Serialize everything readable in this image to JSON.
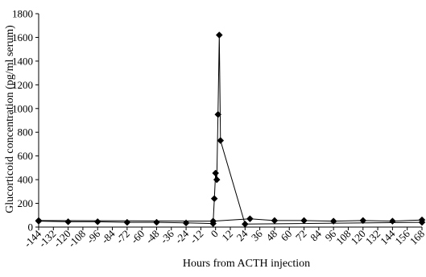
{
  "chart_data": {
    "type": "line",
    "title": "",
    "xlabel": "Hours from ACTH injection",
    "ylabel": "Glucorticoid concentration (pg/ml serum)",
    "xlim": [
      -144,
      168
    ],
    "ylim": [
      0,
      1800
    ],
    "y_ticks": [
      0,
      200,
      400,
      600,
      800,
      1000,
      1200,
      1400,
      1600,
      1800
    ],
    "x_ticks": [
      -144,
      -132,
      -120,
      -108,
      -96,
      -84,
      -72,
      -60,
      -48,
      -36,
      -24,
      -12,
      0,
      12,
      24,
      36,
      48,
      60,
      72,
      84,
      96,
      108,
      120,
      132,
      144,
      156,
      168
    ],
    "grid": false,
    "legend": "none",
    "series": [
      {
        "color": "#000000",
        "marker": "diamond",
        "x": [
          -144,
          -120,
          -96,
          -72,
          -48,
          -24,
          -2,
          -1,
          0,
          1,
          2,
          3,
          4,
          24,
          168
        ],
        "y": [
          50,
          45,
          45,
          40,
          40,
          35,
          30,
          240,
          455,
          400,
          950,
          1620,
          730,
          25,
          40
        ]
      },
      {
        "color": "#000000",
        "marker": "diamond",
        "x": [
          -144,
          -2,
          28,
          48,
          72,
          96,
          120,
          144,
          168
        ],
        "y": [
          55,
          50,
          70,
          55,
          55,
          50,
          55,
          50,
          60
        ]
      }
    ]
  }
}
